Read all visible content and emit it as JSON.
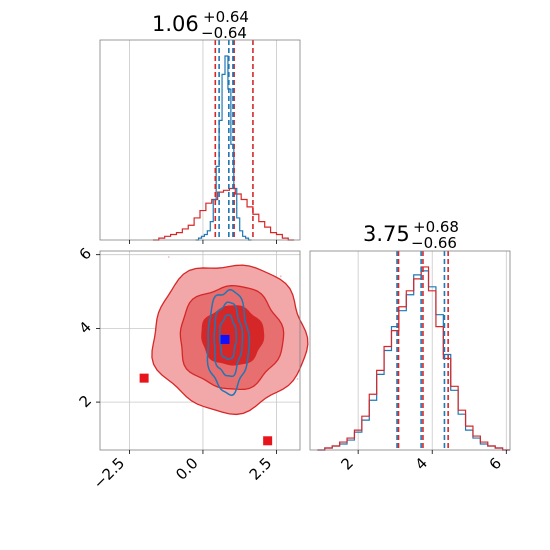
{
  "colors": {
    "prior": "#d62728",
    "posterior": "#1f77b4",
    "prior_fill_light": "#f2a7a8",
    "prior_fill_mid": "#e86f70",
    "prior_fill_dark": "#d62728",
    "marker_red": "#e8141c",
    "marker_blue": "#1010ff",
    "grid": "#c8c8c8",
    "axis": "#808080"
  },
  "chart_data": [
    {
      "panel": "marginal-x",
      "type": "histogram",
      "title": {
        "value": "1.06",
        "plus": "+0.64",
        "minus": "−0.64"
      },
      "xlim": [
        -3.5,
        3.3
      ],
      "grid": true,
      "quantile_lines": {
        "prior": [
          0.42,
          1.06,
          1.7
        ],
        "posterior": [
          0.55,
          0.88,
          1.02
        ]
      },
      "series": [
        {
          "name": "",
          "role": "posterior",
          "color": "#1f77b4",
          "bins": [
            -0.2,
            -0.1,
            0.0,
            0.1,
            0.2,
            0.3,
            0.4,
            0.5,
            0.6,
            0.7,
            0.8,
            0.9,
            1.0,
            1.1,
            1.2,
            1.3,
            1.4,
            1.5,
            1.6
          ],
          "counts": [
            0,
            1,
            2,
            3,
            5,
            10,
            22,
            40,
            65,
            90,
            100,
            82,
            52,
            28,
            12,
            5,
            2,
            1,
            0
          ]
        },
        {
          "name": "",
          "role": "prior",
          "color": "#d62728",
          "bins": [
            -1.6,
            -1.4,
            -1.2,
            -1.0,
            -0.8,
            -0.6,
            -0.4,
            -0.2,
            0.0,
            0.2,
            0.4,
            0.6,
            0.8,
            1.0,
            1.2,
            1.4,
            1.6,
            1.8,
            2.0,
            2.2,
            2.4,
            2.6,
            2.8,
            3.0
          ],
          "counts": [
            0,
            1,
            2,
            3,
            4,
            6,
            8,
            12,
            16,
            20,
            22,
            26,
            27,
            28,
            25,
            22,
            18,
            14,
            10,
            7,
            4,
            3,
            1,
            0
          ]
        }
      ]
    },
    {
      "panel": "joint",
      "type": "contour",
      "xlim": [
        -3.5,
        3.3
      ],
      "ylim": [
        0.7,
        6.1
      ],
      "xticks": [
        "−2.5",
        "0.0",
        "2.5"
      ],
      "yticks": [
        "2",
        "4",
        "6"
      ],
      "xtick_values": [
        -2.5,
        0.0,
        2.5
      ],
      "ytick_values": [
        2,
        4,
        6
      ],
      "grid": true,
      "prior_contours": [
        {
          "level": "outer",
          "cx": 0.9,
          "cy": 3.75,
          "rx": 2.6,
          "ry": 2.0
        },
        {
          "level": "middle",
          "cx": 0.95,
          "cy": 3.75,
          "rx": 1.75,
          "ry": 1.4
        },
        {
          "level": "inner",
          "cx": 1.0,
          "cy": 3.8,
          "rx": 1.05,
          "ry": 0.8
        }
      ],
      "posterior_contours": [
        {
          "level": "outer",
          "cx": 0.85,
          "cy": 3.65,
          "rx": 0.7,
          "ry": 1.4
        },
        {
          "level": "middle",
          "cx": 0.85,
          "cy": 3.7,
          "rx": 0.48,
          "ry": 1.0
        },
        {
          "level": "inner",
          "cx": 0.85,
          "cy": 3.75,
          "rx": 0.28,
          "ry": 0.6
        }
      ],
      "markers": [
        {
          "label": "",
          "x": -2.0,
          "y": 2.65,
          "color": "#e8141c"
        },
        {
          "label": "",
          "x": 2.2,
          "y": 0.95,
          "color": "#e8141c"
        },
        {
          "label": "",
          "x": 0.75,
          "y": 3.7,
          "color": "#1010ff"
        }
      ]
    },
    {
      "panel": "marginal-y",
      "type": "histogram",
      "title": {
        "value": "3.75",
        "plus": "+0.68",
        "minus": "−0.66"
      },
      "xlim": [
        0.7,
        6.1
      ],
      "xticks": [
        "2",
        "4",
        "6"
      ],
      "xtick_values": [
        2,
        4,
        6
      ],
      "grid": true,
      "quantile_lines": {
        "prior": [
          3.09,
          3.75,
          4.43
        ],
        "posterior": [
          3.05,
          3.7,
          4.33
        ]
      },
      "series": [
        {
          "name": "",
          "role": "posterior",
          "color": "#1f77b4",
          "bins": [
            1.0,
            1.2,
            1.4,
            1.6,
            1.8,
            2.0,
            2.2,
            2.4,
            2.6,
            2.8,
            3.0,
            3.2,
            3.4,
            3.6,
            3.8,
            4.0,
            4.2,
            4.4,
            4.6,
            4.8,
            5.0,
            5.2,
            5.4,
            5.6,
            5.8,
            6.0
          ],
          "counts": [
            0,
            1,
            2,
            3,
            5,
            9,
            15,
            25,
            38,
            50,
            62,
            70,
            78,
            88,
            90,
            82,
            68,
            48,
            30,
            18,
            10,
            6,
            3,
            2,
            1,
            0
          ]
        },
        {
          "name": "",
          "role": "prior",
          "color": "#d62728",
          "bins": [
            1.0,
            1.2,
            1.4,
            1.6,
            1.8,
            2.0,
            2.2,
            2.4,
            2.6,
            2.8,
            3.0,
            3.2,
            3.4,
            3.6,
            3.8,
            4.0,
            4.2,
            4.4,
            4.6,
            4.8,
            5.0,
            5.2,
            5.4,
            5.6,
            5.8,
            6.0
          ],
          "counts": [
            0,
            1,
            2,
            4,
            6,
            10,
            17,
            28,
            40,
            52,
            60,
            72,
            80,
            86,
            92,
            80,
            62,
            46,
            32,
            20,
            12,
            7,
            4,
            2,
            1,
            0
          ]
        }
      ]
    }
  ]
}
